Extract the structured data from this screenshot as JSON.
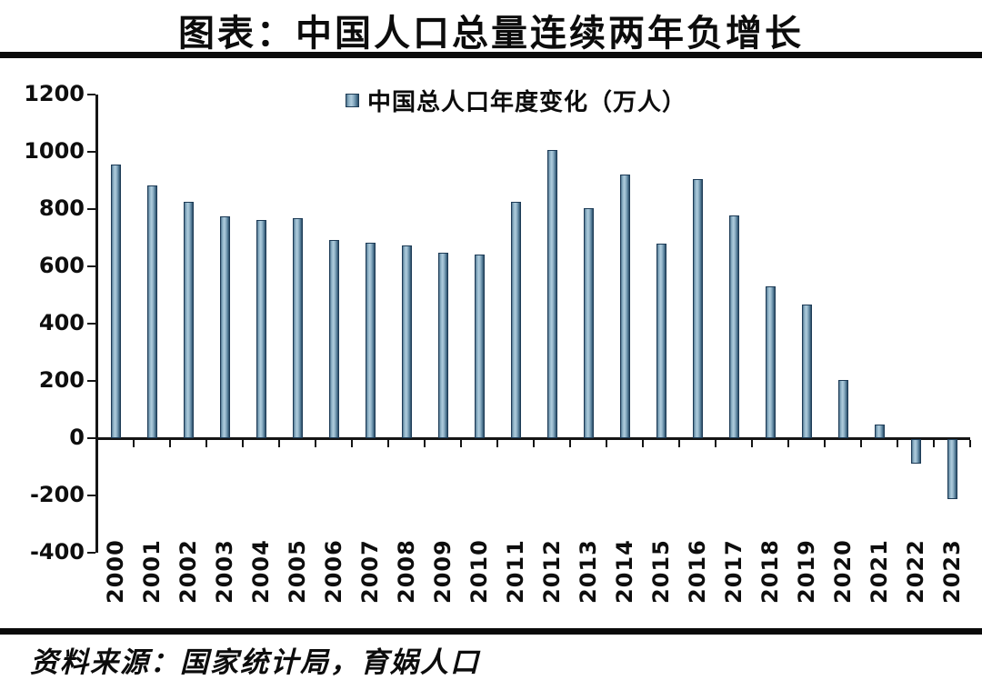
{
  "title": "图表：中国人口总量连续两年负增长",
  "source": "资料来源：国家统计局，育娲人口",
  "chart_data": {
    "type": "bar",
    "title": "图表：中国人口总量连续两年负增长",
    "legend": "中国总人口年度变化（万人）",
    "legend_position": "top-center",
    "legend_marker": "square-gradient-blue",
    "categories": [
      "2000",
      "2001",
      "2002",
      "2003",
      "2004",
      "2005",
      "2006",
      "2007",
      "2008",
      "2009",
      "2010",
      "2011",
      "2012",
      "2013",
      "2014",
      "2015",
      "2016",
      "2017",
      "2018",
      "2019",
      "2020",
      "2021",
      "2022",
      "2023"
    ],
    "values": [
      957,
      884,
      826,
      774,
      761,
      768,
      692,
      681,
      673,
      647,
      641,
      825,
      1006,
      804,
      920,
      680,
      906,
      779,
      530,
      467,
      204,
      48,
      -85,
      -208
    ],
    "xlabel": "",
    "ylabel": "",
    "ylim": [
      -400,
      1200
    ],
    "yticks": [
      1200,
      1000,
      800,
      600,
      400,
      200,
      0,
      -200,
      -400
    ],
    "grid": false,
    "x_label_rotation": -90,
    "colors": {
      "bar_light": "#aecbdc",
      "bar_mid": "#8fb3c8",
      "bar_dark": "#2b4b63",
      "bar_outline": "#1d3b56",
      "axis": "#151515",
      "text": "#0c0c0c",
      "background": "#ffffff"
    }
  }
}
